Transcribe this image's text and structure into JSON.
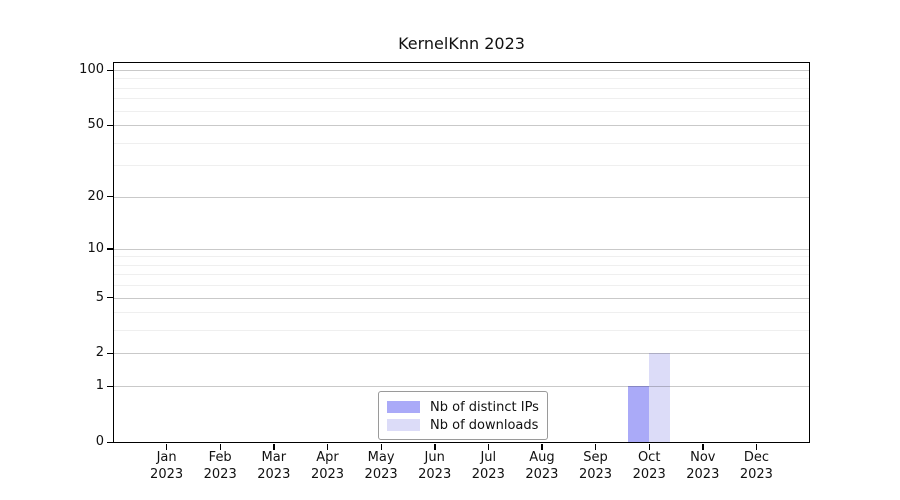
{
  "title": "KernelKnn 2023",
  "chart_data": {
    "type": "bar",
    "title": "KernelKnn 2023",
    "categories": [
      "Jan 2023",
      "Feb 2023",
      "Mar 2023",
      "Apr 2023",
      "May 2023",
      "Jun 2023",
      "Jul 2023",
      "Aug 2023",
      "Sep 2023",
      "Oct 2023",
      "Nov 2023",
      "Dec 2023"
    ],
    "series": [
      {
        "name": "Nb of distinct IPs",
        "color": "#aaaaf8",
        "values": [
          0,
          0,
          0,
          0,
          0,
          0,
          0,
          0,
          0,
          1,
          0,
          0
        ]
      },
      {
        "name": "Nb of downloads",
        "color": "#dcdcf8",
        "values": [
          0,
          0,
          0,
          0,
          0,
          0,
          0,
          0,
          0,
          2,
          0,
          0
        ]
      }
    ],
    "xlabel": "",
    "ylabel": "",
    "yscale": "log1p",
    "ylim": [
      0,
      110
    ],
    "yticks": [
      0,
      1,
      2,
      5,
      10,
      20,
      50,
      100
    ],
    "minor_yticks": [
      3,
      4,
      6,
      7,
      8,
      9,
      30,
      40,
      60,
      70,
      80,
      90
    ],
    "grid": true,
    "legend_position": "lower center inside",
    "colors": {
      "axis": "#000000",
      "major_grid": "#c9c9c9",
      "minor_grid": "#efefef",
      "background": "#ffffff"
    }
  },
  "legend": {
    "items": [
      {
        "label": "Nb of distinct IPs",
        "color": "#aaaaf8"
      },
      {
        "label": "Nb of downloads",
        "color": "#dcdcf8"
      }
    ]
  }
}
